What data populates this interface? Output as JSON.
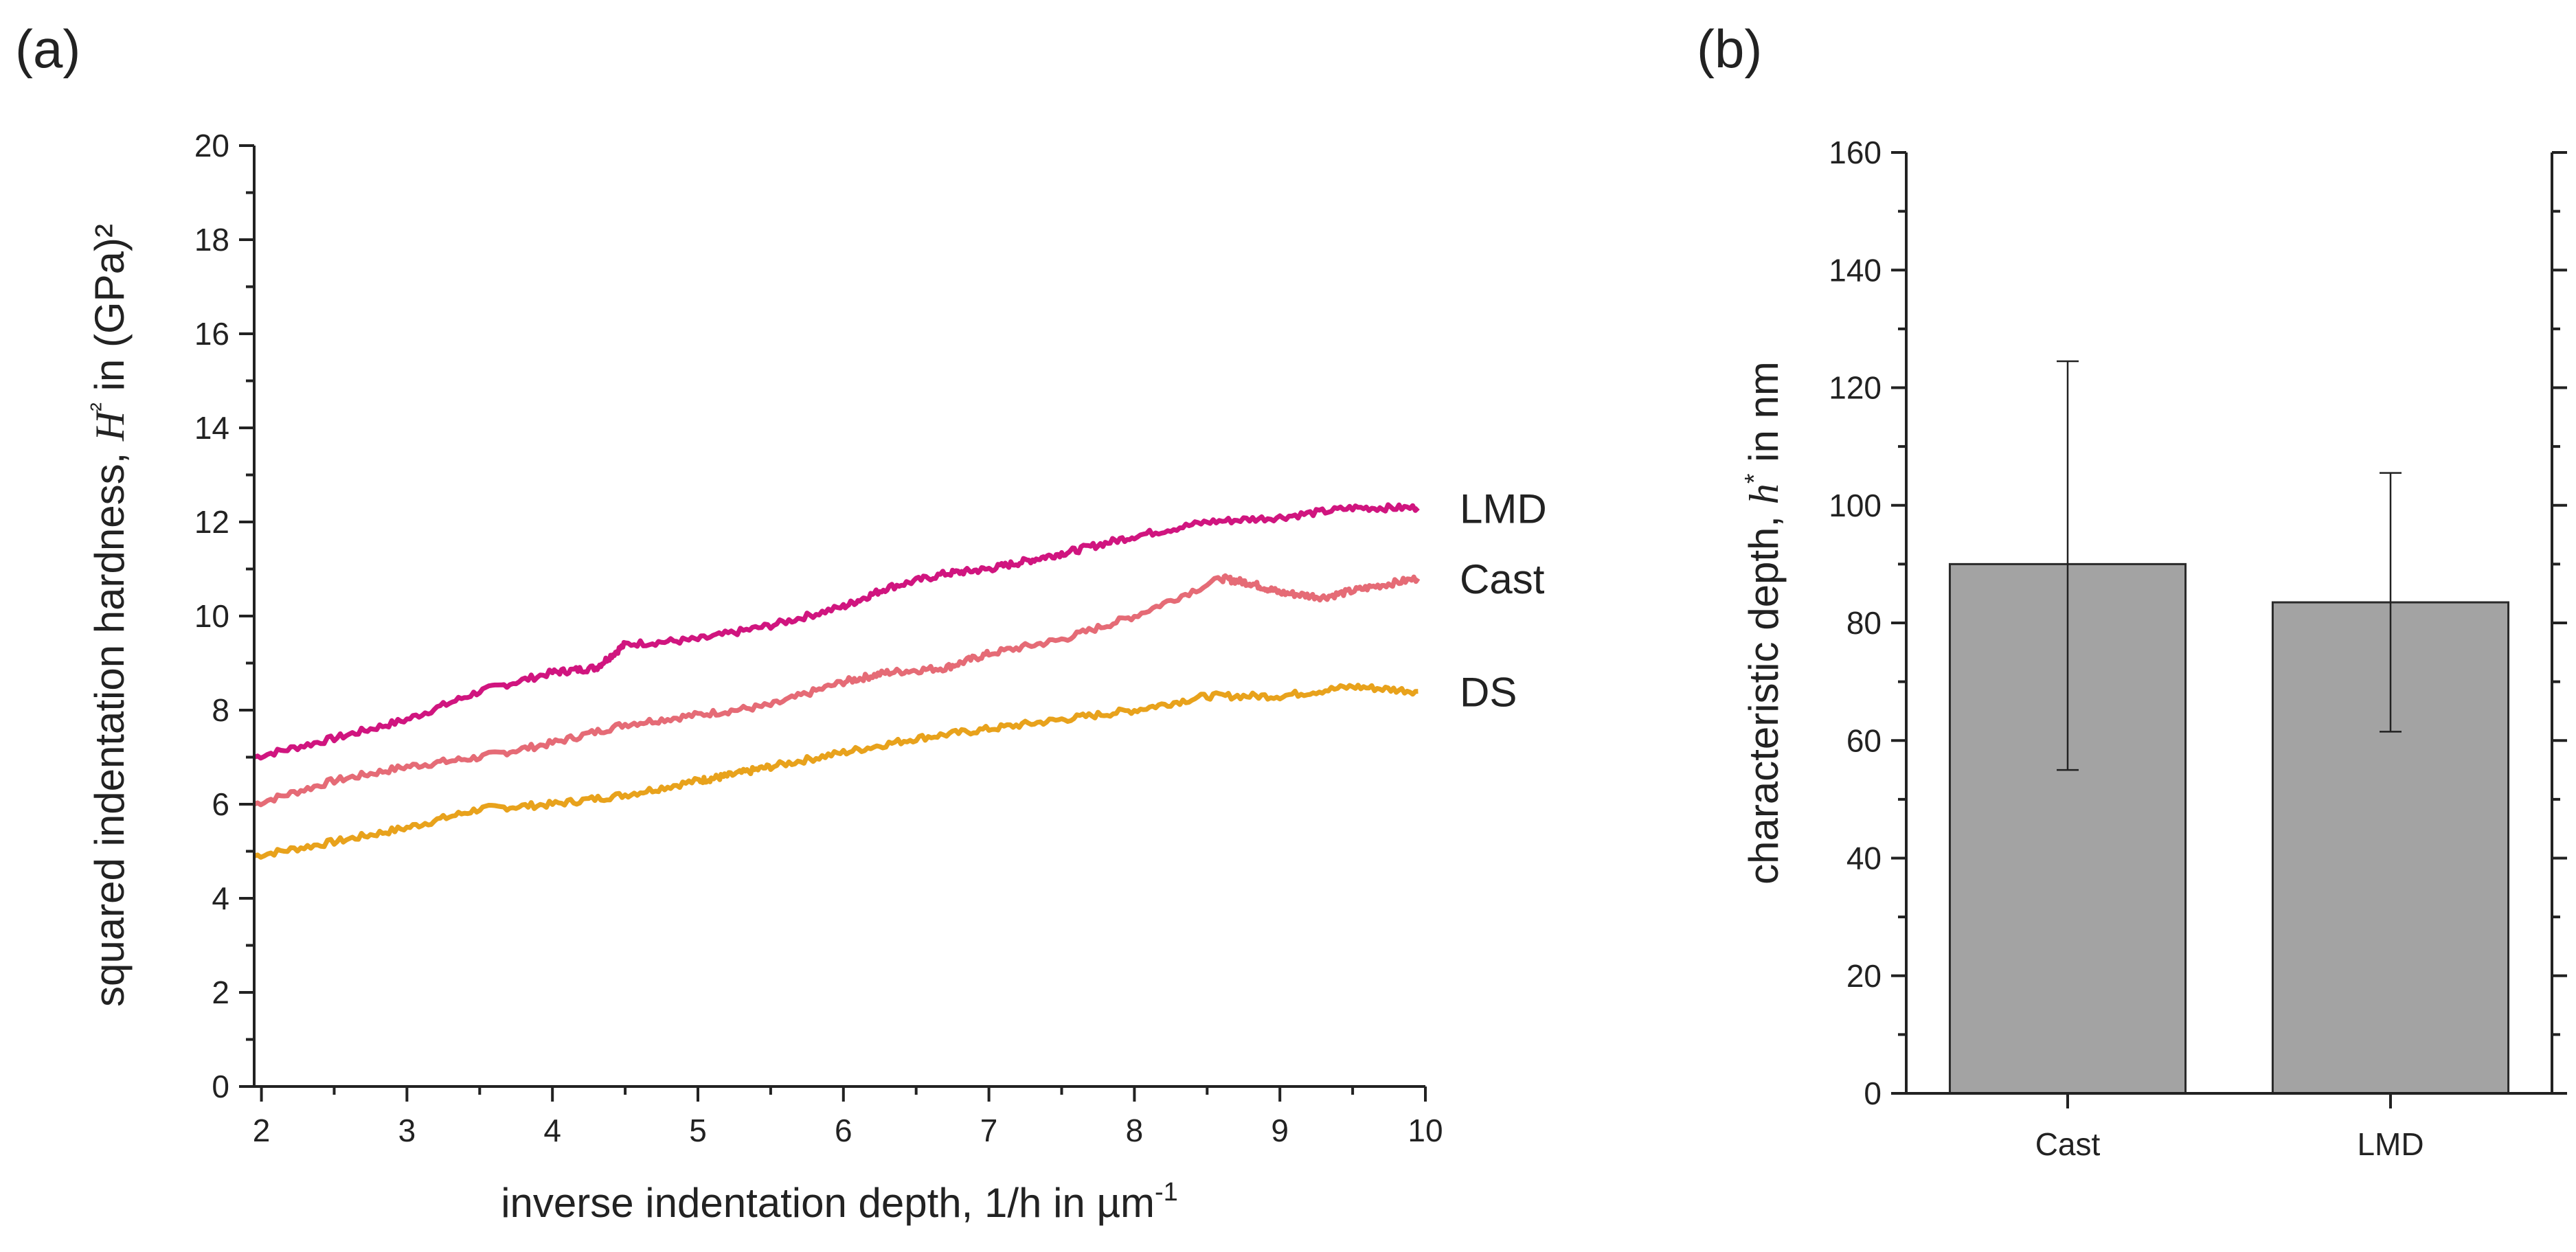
{
  "panels": {
    "a": {
      "label": "(a)"
    },
    "b": {
      "label": "(b)"
    }
  },
  "chart_data": [
    {
      "id": "a",
      "type": "line",
      "title": "",
      "xlabel_parts": [
        "inverse indentation depth, 1/h in µm",
        "-1"
      ],
      "ylabel_parts": [
        "squared indentation hardness, ",
        "H",
        "²",
        " in (GPa)²"
      ],
      "xlim": [
        1.95,
        10
      ],
      "ylim": [
        0,
        20
      ],
      "xticks": [
        2,
        3,
        4,
        5,
        6,
        7,
        8,
        9,
        10
      ],
      "yticks": [
        0,
        2,
        4,
        6,
        8,
        10,
        12,
        14,
        16,
        18,
        20
      ],
      "series": [
        {
          "name": "LMD",
          "color": "#d0157f",
          "x": [
            1.95,
            2.5,
            3.0,
            3.5,
            4.0,
            4.3,
            4.5,
            5.0,
            5.5,
            6.0,
            6.3,
            6.7,
            7.0,
            7.3,
            7.6,
            8.0,
            8.5,
            9.0,
            9.5,
            9.95
          ],
          "y": [
            7.0,
            7.4,
            7.8,
            8.4,
            8.8,
            8.9,
            9.4,
            9.5,
            9.8,
            10.2,
            10.6,
            10.9,
            11.0,
            11.2,
            11.4,
            11.7,
            12.0,
            12.1,
            12.3,
            12.3
          ]
        },
        {
          "name": "Cast",
          "color": "#e56b76",
          "x": [
            1.95,
            2.5,
            3.0,
            3.5,
            4.0,
            4.5,
            5.0,
            5.5,
            6.0,
            6.3,
            6.7,
            7.0,
            7.5,
            8.0,
            8.6,
            8.8,
            9.0,
            9.3,
            9.6,
            9.95
          ],
          "y": [
            6.0,
            6.5,
            6.8,
            7.0,
            7.3,
            7.7,
            7.9,
            8.1,
            8.6,
            8.8,
            8.9,
            9.2,
            9.5,
            10.0,
            10.8,
            10.7,
            10.5,
            10.4,
            10.6,
            10.8
          ]
        },
        {
          "name": "DS",
          "color": "#e8a21c",
          "x": [
            1.95,
            2.5,
            3.0,
            3.5,
            4.0,
            4.5,
            5.0,
            5.2,
            5.5,
            6.0,
            6.5,
            7.0,
            7.5,
            8.0,
            8.5,
            9.0,
            9.5,
            9.95
          ],
          "y": [
            4.9,
            5.2,
            5.5,
            5.9,
            6.0,
            6.2,
            6.5,
            6.6,
            6.8,
            7.1,
            7.4,
            7.6,
            7.8,
            8.0,
            8.3,
            8.3,
            8.5,
            8.4
          ]
        }
      ]
    },
    {
      "id": "b",
      "type": "bar",
      "title": "",
      "xlabel": "",
      "ylabel_parts": [
        "characteristic depth, ",
        "h",
        "*",
        " in nm"
      ],
      "categories": [
        "Cast",
        "LMD"
      ],
      "values": [
        90,
        83.5
      ],
      "errors_upper": [
        124.5,
        105.5
      ],
      "errors_lower": [
        55,
        61.5
      ],
      "bar_color": "#a3a3a3",
      "ylim": [
        0,
        160
      ],
      "yticks": [
        0,
        20,
        40,
        60,
        80,
        100,
        120,
        140,
        160
      ]
    }
  ]
}
